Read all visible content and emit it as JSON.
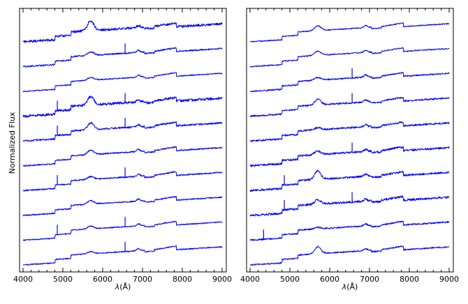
{
  "figure": {
    "ylabel": "Normalized Flux",
    "xlabel_var": "λ",
    "xlabel_unit": "Å",
    "line_color": "#0000ff"
  },
  "chart_data": [
    {
      "type": "line",
      "panel": "left",
      "xlim": [
        4000,
        9000
      ],
      "xticks": [
        4000,
        5000,
        6000,
        7000,
        8000,
        9000
      ],
      "ylabel": "Normalized Flux",
      "grid": false,
      "series_count": 10
    },
    {
      "type": "line",
      "panel": "right",
      "xlim": [
        4000,
        9000
      ],
      "xticks": [
        4000,
        5000,
        6000,
        7000,
        8000,
        9000
      ],
      "grid": false,
      "series_count": 10
    }
  ]
}
